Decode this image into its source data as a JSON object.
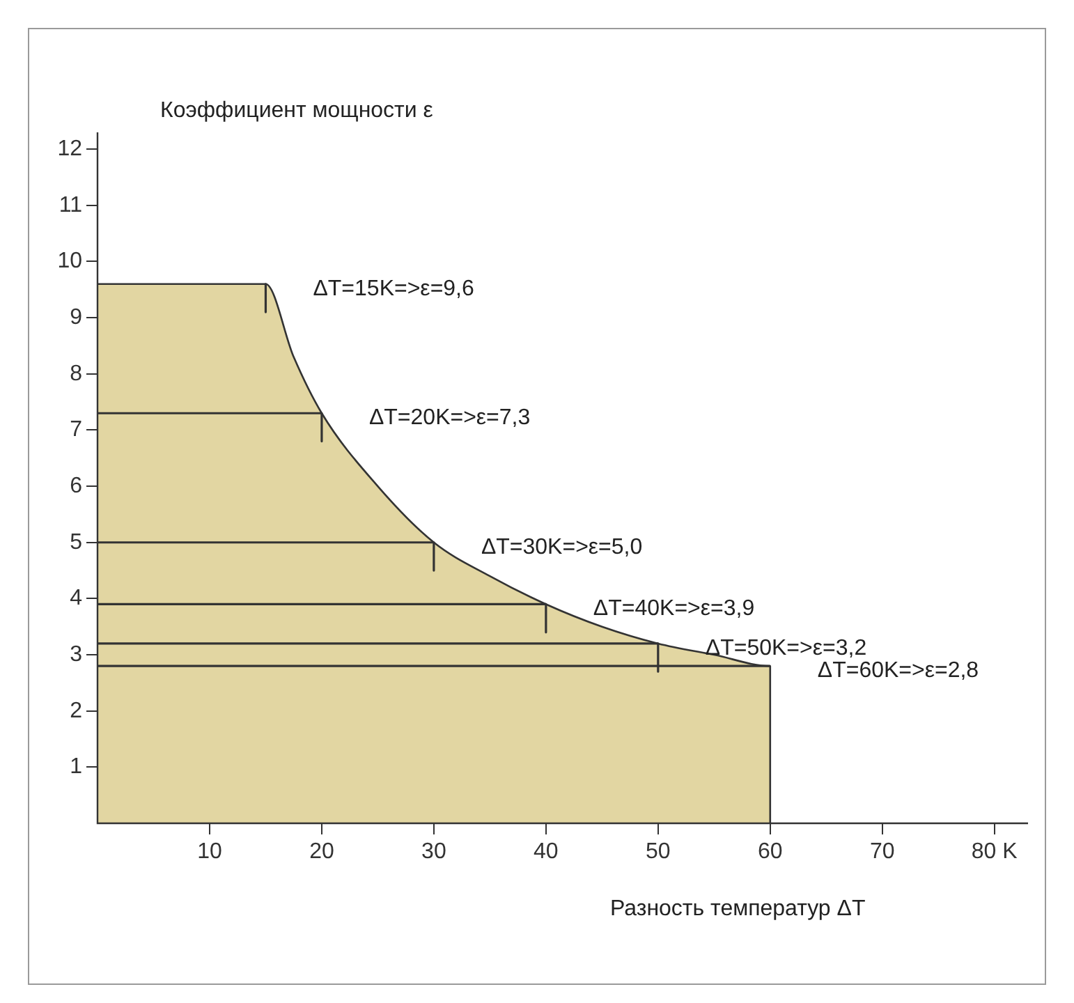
{
  "chart_data": {
    "type": "area",
    "xlabel": "Разность температур ΔT",
    "ylabel": "Коэффициент мощности ε",
    "series": [
      {
        "color": "#e2d6a2",
        "x": [
          0,
          15,
          17.5,
          20,
          25,
          30,
          35,
          40,
          45,
          50,
          55,
          60,
          60
        ],
        "values": [
          9.6,
          9.6,
          8.3,
          7.3,
          6.0,
          5.0,
          4.4,
          3.9,
          3.5,
          3.2,
          3.0,
          2.8,
          0
        ]
      },
      {
        "type": "line",
        "color": "#333333",
        "x": [
          0,
          20
        ],
        "values": [
          7.3,
          7.3
        ]
      },
      {
        "type": "line",
        "color": "#333333",
        "x": [
          0,
          30
        ],
        "values": [
          5.0,
          5.0
        ]
      },
      {
        "type": "line",
        "color": "#333333",
        "x": [
          0,
          40
        ],
        "values": [
          3.9,
          3.9
        ]
      },
      {
        "type": "line",
        "color": "#333333",
        "x": [
          0,
          50
        ],
        "values": [
          3.2,
          3.2
        ]
      },
      {
        "type": "line",
        "color": "#333333",
        "x": [
          0,
          60
        ],
        "values": [
          2.8,
          2.8
        ]
      },
      {
        "type": "line",
        "color": "#333333",
        "x": [
          15,
          15
        ],
        "values": [
          9.6,
          9.1
        ]
      },
      {
        "type": "line",
        "color": "#333333",
        "x": [
          20,
          20
        ],
        "values": [
          7.3,
          6.8
        ]
      },
      {
        "type": "line",
        "color": "#333333",
        "x": [
          30,
          30
        ],
        "values": [
          5.0,
          4.5
        ]
      },
      {
        "type": "line",
        "color": "#333333",
        "x": [
          40,
          40
        ],
        "values": [
          3.9,
          3.4
        ]
      },
      {
        "type": "line",
        "color": "#333333",
        "x": [
          50,
          50
        ],
        "values": [
          3.2,
          2.7
        ]
      }
    ],
    "xlim": [
      0,
      83
    ],
    "xticks": [
      10,
      20,
      30,
      40,
      50,
      60,
      70,
      {
        "value": 80,
        "label": "80 K"
      }
    ],
    "grid": false,
    "legend": false,
    "ylim": [
      0,
      12.3
    ],
    "yticks": [
      1,
      2,
      3,
      4,
      5,
      6,
      7,
      8,
      9,
      10,
      11,
      12
    ],
    "annotations": [
      {
        "text": "ΔT=15K=>ε=9,6",
        "x": 15,
        "y": 9.6
      },
      {
        "text": "ΔT=20K=>ε=7,3",
        "x": 20,
        "y": 7.3
      },
      {
        "text": "ΔT=30K=>ε=5,0",
        "x": 30,
        "y": 5.0
      },
      {
        "text": "ΔT=40K=>ε=3,9",
        "x": 40,
        "y": 3.9
      },
      {
        "text": "ΔT=50K=>ε=3,2",
        "x": 50,
        "y": 3.2
      },
      {
        "text": "ΔT=60K=>ε=2,8",
        "x": 60,
        "y": 2.8
      }
    ]
  }
}
